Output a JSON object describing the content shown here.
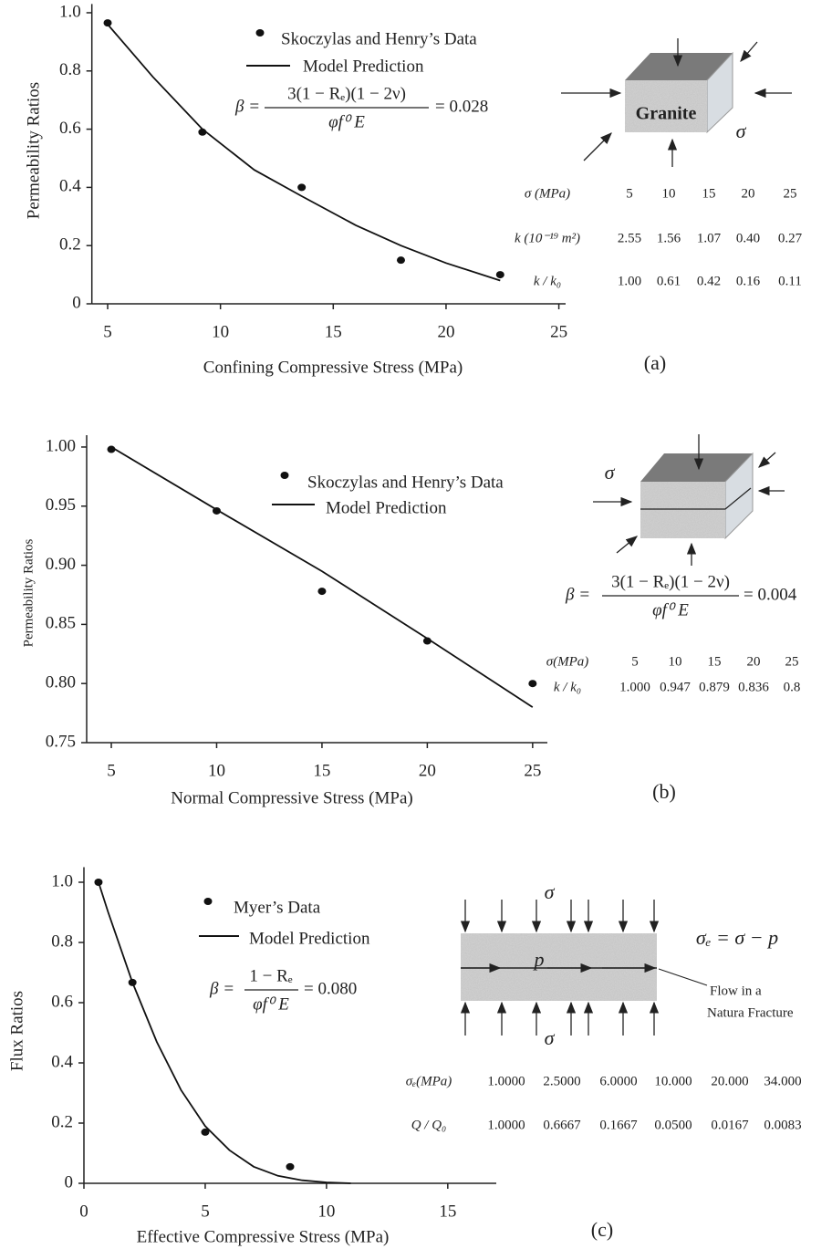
{
  "chart_data": [
    {
      "type": "line",
      "panel_label": "(a)",
      "x_label": "Confining Compressive Stress (MPa)",
      "y_label": "Permeability Ratios",
      "xlim": [
        4.3,
        25.3
      ],
      "xticks": [
        5,
        10,
        15,
        20,
        25
      ],
      "ylim": [
        0,
        1.03
      ],
      "yticks": [
        0,
        0.2,
        0.4,
        0.6,
        0.8,
        {
          "value": 1,
          "label": "1.0"
        }
      ],
      "series": [
        {
          "name": "Skoczylas and Henry’s Data",
          "color": "#111111",
          "marker": "dot",
          "x": [
            5,
            9.2,
            13.6,
            18,
            22.4
          ],
          "values": [
            0.965,
            0.59,
            0.4,
            0.15,
            0.1
          ]
        },
        {
          "name": "Model Prediction",
          "color": "#111111",
          "marker": "none",
          "x": [
            5,
            7,
            9.2,
            11.5,
            13.6,
            16,
            18,
            20,
            22.4
          ],
          "values": [
            0.96,
            0.78,
            0.6,
            0.46,
            0.37,
            0.27,
            0.2,
            0.14,
            0.08
          ]
        }
      ],
      "formula": {
        "lhs": "β =",
        "numerator": "3(1 − Rₑ)(1 − 2ν)",
        "denominator": "φf⁰ E",
        "rhs": "= 0.028"
      },
      "diagram_labels": [
        "Granite",
        "σ"
      ],
      "table": {
        "rows": [
          [
            "σ (MPa)",
            "5",
            "10",
            "15",
            "20",
            "25"
          ],
          [
            "k (10⁻¹⁹ m²)",
            "2.55",
            "1.56",
            "1.07",
            "0.40",
            "0.27"
          ],
          [
            "k / k₀",
            "1.00",
            "0.61",
            "0.42",
            "0.16",
            "0.11"
          ]
        ]
      }
    },
    {
      "type": "line",
      "panel_label": "(b)",
      "x_label": "Normal Compressive Stress (MPa)",
      "y_label": "Permeability Ratios",
      "xlim": [
        3.83,
        25.7
      ],
      "xticks": [
        5,
        10,
        15,
        20,
        25
      ],
      "ylim": [
        0.75,
        1.01
      ],
      "yticks": [
        0.75,
        {
          "value": 0.8,
          "label": "0.80"
        },
        0.85,
        {
          "value": 0.9,
          "label": "0.90"
        },
        0.95,
        {
          "value": 1,
          "label": "1.00"
        }
      ],
      "series": [
        {
          "name": "Skoczylas and Henry’s Data",
          "color": "#111111",
          "marker": "dot",
          "x": [
            5,
            10,
            15,
            20,
            25
          ],
          "values": [
            0.998,
            0.946,
            0.878,
            0.836,
            0.8
          ]
        },
        {
          "name": "Model Prediction",
          "color": "#111111",
          "marker": "none",
          "x": [
            5,
            10,
            15,
            20,
            25
          ],
          "values": [
            1.0,
            0.947,
            0.895,
            0.838,
            0.78
          ]
        }
      ],
      "formula": {
        "lhs": "β =",
        "numerator": "3(1 − Rₑ)(1 − 2ν)",
        "denominator": "φf⁰ E",
        "rhs": "= 0.004"
      },
      "diagram_labels": [
        "σ"
      ],
      "table": {
        "rows": [
          [
            "σ(MPa)",
            "5",
            "10",
            "15",
            "20",
            "25"
          ],
          [
            "k / k₀",
            "1.000",
            "0.947",
            "0.879",
            "0.836",
            "0.8"
          ]
        ]
      }
    },
    {
      "type": "line",
      "panel_label": "(c)",
      "x_label": "Effective Compressive  Stress (MPa)",
      "y_label": "Flux Ratios",
      "xlim": [
        0,
        17
      ],
      "xticks": [
        0,
        5,
        10,
        15
      ],
      "ylim": [
        0,
        1.05
      ],
      "yticks": [
        0,
        0.2,
        0.4,
        0.6,
        0.8,
        {
          "value": 1,
          "label": "1.0"
        }
      ],
      "series": [
        {
          "name": "Myer’s Data",
          "color": "#111111",
          "marker": "dot",
          "x": [
            0.6,
            2,
            5,
            8.5
          ],
          "values": [
            1.0,
            0.667,
            0.17,
            0.055
          ]
        },
        {
          "name": "Model Prediction",
          "color": "#111111",
          "marker": "none",
          "x": [
            0.6,
            1,
            2,
            3,
            4,
            5,
            6,
            7,
            8,
            9,
            10,
            11
          ],
          "values": [
            1.0,
            0.9,
            0.667,
            0.47,
            0.31,
            0.19,
            0.11,
            0.055,
            0.025,
            0.01,
            0.003,
            0
          ]
        }
      ],
      "formula": {
        "lhs": "β =",
        "numerator": "1 − Rₑ",
        "denominator": "φf⁰ E",
        "rhs": "= 0.080"
      },
      "diagram_labels": [
        "σ",
        "σ",
        "p",
        "σₑ = σ − p",
        "Flow in a",
        "Natura Fracture"
      ],
      "table": {
        "rows": [
          [
            "σₑ(MPa)",
            "1.0000",
            "2.5000",
            "6.0000",
            "10.000",
            "20.000",
            "34.000"
          ],
          [
            "Q / Q₀",
            "1.0000",
            "0.6667",
            "0.1667",
            "0.0500",
            "0.0167",
            "0.0083"
          ]
        ]
      }
    }
  ]
}
